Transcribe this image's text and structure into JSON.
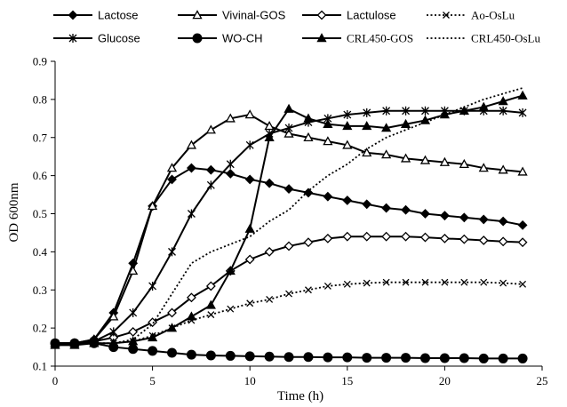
{
  "chart_data": {
    "type": "line",
    "xlabel": "Time (h)",
    "ylabel": "OD 600nm",
    "xlim": [
      0,
      25
    ],
    "ylim": [
      0.1,
      0.9
    ],
    "x_ticks": [
      0,
      5,
      10,
      15,
      20,
      25
    ],
    "y_ticks": [
      0.1,
      0.2,
      0.3,
      0.4,
      0.5,
      0.6,
      0.7,
      0.8,
      0.9
    ],
    "grid": false,
    "legend_position": "top",
    "x": [
      0,
      1,
      2,
      3,
      4,
      5,
      6,
      7,
      8,
      9,
      10,
      11,
      12,
      13,
      14,
      15,
      16,
      17,
      18,
      19,
      20,
      21,
      22,
      23,
      24
    ],
    "series": [
      {
        "name": "Lactose",
        "marker": "diamond-filled",
        "line": "solid",
        "values": [
          0.16,
          0.16,
          0.17,
          0.24,
          0.37,
          0.52,
          0.59,
          0.62,
          0.615,
          0.605,
          0.59,
          0.58,
          0.565,
          0.555,
          0.545,
          0.535,
          0.525,
          0.515,
          0.51,
          0.5,
          0.495,
          0.49,
          0.485,
          0.48,
          0.47
        ]
      },
      {
        "name": "Vivinal-GOS",
        "marker": "triangle-open",
        "line": "solid",
        "values": [
          0.16,
          0.16,
          0.17,
          0.23,
          0.35,
          0.52,
          0.62,
          0.68,
          0.72,
          0.75,
          0.76,
          0.73,
          0.71,
          0.7,
          0.69,
          0.68,
          0.66,
          0.655,
          0.645,
          0.64,
          0.635,
          0.63,
          0.62,
          0.615,
          0.61
        ]
      },
      {
        "name": "Lactulose",
        "marker": "diamond-open",
        "line": "solid",
        "values": [
          0.16,
          0.16,
          0.165,
          0.175,
          0.19,
          0.215,
          0.24,
          0.28,
          0.31,
          0.35,
          0.38,
          0.4,
          0.415,
          0.425,
          0.435,
          0.44,
          0.44,
          0.44,
          0.44,
          0.438,
          0.435,
          0.433,
          0.43,
          0.427,
          0.425
        ]
      },
      {
        "name": "Ao-OsLu",
        "marker": "x",
        "line": "dotted",
        "values": [
          0.16,
          0.16,
          0.16,
          0.16,
          0.165,
          0.18,
          0.2,
          0.22,
          0.235,
          0.25,
          0.265,
          0.275,
          0.29,
          0.3,
          0.31,
          0.315,
          0.318,
          0.32,
          0.32,
          0.32,
          0.32,
          0.32,
          0.32,
          0.318,
          0.315
        ]
      },
      {
        "name": "Glucose",
        "marker": "star",
        "line": "solid",
        "values": [
          0.16,
          0.16,
          0.165,
          0.19,
          0.24,
          0.31,
          0.4,
          0.5,
          0.575,
          0.63,
          0.68,
          0.71,
          0.725,
          0.74,
          0.75,
          0.76,
          0.765,
          0.77,
          0.77,
          0.77,
          0.77,
          0.77,
          0.77,
          0.77,
          0.765
        ]
      },
      {
        "name": "WO-CH",
        "marker": "circle-filled",
        "line": "solid",
        "values": [
          0.16,
          0.16,
          0.16,
          0.15,
          0.145,
          0.14,
          0.135,
          0.13,
          0.128,
          0.127,
          0.126,
          0.125,
          0.124,
          0.124,
          0.123,
          0.123,
          0.122,
          0.122,
          0.122,
          0.121,
          0.121,
          0.121,
          0.12,
          0.12,
          0.12
        ]
      },
      {
        "name": "CRL450-GOS",
        "marker": "triangle-filled",
        "line": "solid",
        "values": [
          0.155,
          0.155,
          0.16,
          0.16,
          0.165,
          0.175,
          0.2,
          0.23,
          0.26,
          0.35,
          0.46,
          0.7,
          0.775,
          0.75,
          0.735,
          0.73,
          0.73,
          0.725,
          0.735,
          0.745,
          0.76,
          0.77,
          0.78,
          0.795,
          0.81
        ]
      },
      {
        "name": "CRL450-OsLu",
        "marker": "none",
        "line": "dotted",
        "values": [
          0.16,
          0.16,
          0.16,
          0.16,
          0.17,
          0.21,
          0.29,
          0.37,
          0.4,
          0.42,
          0.44,
          0.48,
          0.51,
          0.56,
          0.6,
          0.63,
          0.67,
          0.7,
          0.72,
          0.74,
          0.76,
          0.78,
          0.8,
          0.815,
          0.83
        ]
      }
    ]
  }
}
